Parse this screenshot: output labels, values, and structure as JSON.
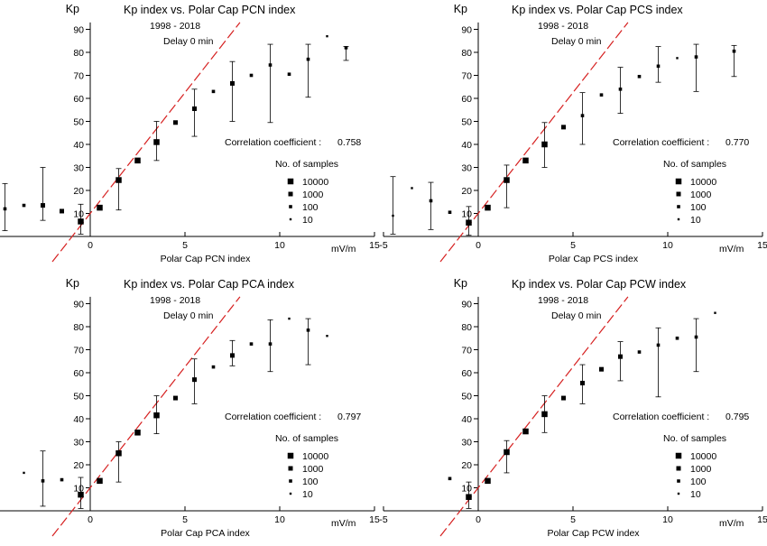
{
  "chart_data": [
    {
      "type": "scatter",
      "title": "Kp index vs. Polar Cap PCN index",
      "subtitle": "1998 - 2018",
      "delay": "Delay 0 min",
      "xlabel": "Polar Cap PCN index",
      "xunit": "mV/m",
      "ylabel": "Kp",
      "xlim": [
        -5,
        15
      ],
      "ylim": [
        0,
        9.3
      ],
      "xticks": [
        "-5",
        "0",
        "5",
        "10",
        "15"
      ],
      "yticks": [
        "10",
        "20",
        "30",
        "40",
        "50",
        "60",
        "70",
        "80",
        "90"
      ],
      "correlation_label": "Correlation coefficient :",
      "correlation": "0.758",
      "legend": {
        "title": "No. of samples",
        "entries": [
          "10000",
          "1000",
          "100",
          "10"
        ]
      },
      "points": [
        {
          "x": -4.5,
          "y": 1.2,
          "lo": 0.25,
          "hi": 2.3,
          "n": 100
        },
        {
          "x": -3.5,
          "y": 1.35,
          "n": 100
        },
        {
          "x": -2.5,
          "y": 1.35,
          "lo": 0.7,
          "hi": 3.0,
          "n": 1000
        },
        {
          "x": -1.5,
          "y": 1.1,
          "n": 1000
        },
        {
          "x": -0.5,
          "y": 0.65,
          "lo": 0.1,
          "hi": 1.4,
          "n": 10000
        },
        {
          "x": 0.5,
          "y": 1.25,
          "n": 10000
        },
        {
          "x": 1.5,
          "y": 2.45,
          "lo": 1.15,
          "hi": 2.95,
          "n": 10000
        },
        {
          "x": 2.5,
          "y": 3.3,
          "n": 10000
        },
        {
          "x": 3.5,
          "y": 4.1,
          "lo": 3.3,
          "hi": 5.0,
          "n": 10000
        },
        {
          "x": 4.5,
          "y": 4.95,
          "n": 1000
        },
        {
          "x": 5.5,
          "y": 5.55,
          "lo": 4.35,
          "hi": 6.4,
          "n": 1000
        },
        {
          "x": 6.5,
          "y": 6.3,
          "n": 100
        },
        {
          "x": 7.5,
          "y": 6.65,
          "lo": 5.0,
          "hi": 7.6,
          "n": 1000
        },
        {
          "x": 8.5,
          "y": 7.0,
          "n": 100
        },
        {
          "x": 9.5,
          "y": 7.45,
          "lo": 4.95,
          "hi": 8.35,
          "n": 100
        },
        {
          "x": 10.5,
          "y": 7.05,
          "n": 100
        },
        {
          "x": 11.5,
          "y": 7.7,
          "lo": 6.05,
          "hi": 8.35,
          "n": 100
        },
        {
          "x": 12.5,
          "y": 8.7,
          "n": 10
        },
        {
          "x": 13.5,
          "y": 8.2,
          "lo": 7.65,
          "hi": 8.25,
          "n": 100
        }
      ]
    },
    {
      "type": "scatter",
      "title": "Kp index vs. Polar Cap PCS index",
      "subtitle": "1998 - 2018",
      "delay": "Delay 0 min",
      "xlabel": "Polar Cap PCS index",
      "xunit": "mV/m",
      "ylabel": "Kp",
      "xlim": [
        -5,
        15
      ],
      "ylim": [
        0,
        9.3
      ],
      "xticks": [
        "-5",
        "0",
        "5",
        "10",
        "15"
      ],
      "yticks": [
        "10",
        "20",
        "30",
        "40",
        "50",
        "60",
        "70",
        "80",
        "90"
      ],
      "correlation_label": "Correlation coefficient :",
      "correlation": "0.770",
      "legend": {
        "title": "No. of samples",
        "entries": [
          "10000",
          "1000",
          "100",
          "10"
        ]
      },
      "points": [
        {
          "x": -4.5,
          "y": 0.9,
          "lo": 0.1,
          "hi": 2.6,
          "n": 10
        },
        {
          "x": -3.5,
          "y": 2.1,
          "n": 10
        },
        {
          "x": -2.5,
          "y": 1.55,
          "lo": 0.3,
          "hi": 2.35,
          "n": 100
        },
        {
          "x": -1.5,
          "y": 1.05,
          "n": 100
        },
        {
          "x": -0.5,
          "y": 0.6,
          "lo": 0.05,
          "hi": 1.3,
          "n": 10000
        },
        {
          "x": 0.5,
          "y": 1.25,
          "n": 10000
        },
        {
          "x": 1.5,
          "y": 2.45,
          "lo": 1.25,
          "hi": 3.1,
          "n": 10000
        },
        {
          "x": 2.5,
          "y": 3.3,
          "n": 10000
        },
        {
          "x": 3.5,
          "y": 4.0,
          "lo": 3.0,
          "hi": 4.95,
          "n": 10000
        },
        {
          "x": 4.5,
          "y": 4.75,
          "n": 1000
        },
        {
          "x": 5.5,
          "y": 5.25,
          "lo": 4.0,
          "hi": 6.25,
          "n": 100
        },
        {
          "x": 6.5,
          "y": 6.15,
          "n": 100
        },
        {
          "x": 7.5,
          "y": 6.4,
          "lo": 5.35,
          "hi": 7.35,
          "n": 100
        },
        {
          "x": 8.5,
          "y": 6.95,
          "n": 100
        },
        {
          "x": 9.5,
          "y": 7.4,
          "lo": 6.7,
          "hi": 8.25,
          "n": 100
        },
        {
          "x": 10.5,
          "y": 7.75,
          "n": 10
        },
        {
          "x": 11.5,
          "y": 7.8,
          "lo": 6.3,
          "hi": 8.35,
          "n": 100
        },
        {
          "x": 13.5,
          "y": 8.05,
          "lo": 6.95,
          "hi": 8.3,
          "n": 100
        }
      ]
    },
    {
      "type": "scatter",
      "title": "Kp index vs. Polar Cap PCA index",
      "subtitle": "1998 - 2018",
      "delay": "Delay 0 min",
      "xlabel": "Polar Cap PCA index",
      "xunit": "mV/m",
      "ylabel": "Kp",
      "xlim": [
        -5,
        15
      ],
      "ylim": [
        0,
        9.3
      ],
      "xticks": [
        "-5",
        "0",
        "5",
        "10",
        "15"
      ],
      "yticks": [
        "10",
        "20",
        "30",
        "40",
        "50",
        "60",
        "70",
        "80",
        "90"
      ],
      "correlation_label": "Correlation coefficient :",
      "correlation": "0.797",
      "legend": {
        "title": "No. of samples",
        "entries": [
          "10000",
          "1000",
          "100",
          "10"
        ]
      },
      "points": [
        {
          "x": -3.5,
          "y": 1.65,
          "n": 10
        },
        {
          "x": -2.5,
          "y": 1.3,
          "lo": 0.2,
          "hi": 2.6,
          "n": 100
        },
        {
          "x": -1.5,
          "y": 1.35,
          "n": 100
        },
        {
          "x": -0.5,
          "y": 0.7,
          "lo": 0.1,
          "hi": 1.45,
          "n": 10000
        },
        {
          "x": 0.5,
          "y": 1.3,
          "n": 10000
        },
        {
          "x": 1.5,
          "y": 2.5,
          "lo": 1.25,
          "hi": 3.0,
          "n": 10000
        },
        {
          "x": 2.5,
          "y": 3.4,
          "n": 10000
        },
        {
          "x": 3.5,
          "y": 4.15,
          "lo": 3.35,
          "hi": 5.0,
          "n": 10000
        },
        {
          "x": 4.5,
          "y": 4.9,
          "n": 1000
        },
        {
          "x": 5.5,
          "y": 5.7,
          "lo": 4.65,
          "hi": 6.6,
          "n": 1000
        },
        {
          "x": 6.5,
          "y": 6.25,
          "n": 100
        },
        {
          "x": 7.5,
          "y": 6.75,
          "lo": 6.3,
          "hi": 7.4,
          "n": 1000
        },
        {
          "x": 8.5,
          "y": 7.25,
          "n": 100
        },
        {
          "x": 9.5,
          "y": 7.25,
          "lo": 6.05,
          "hi": 8.3,
          "n": 100
        },
        {
          "x": 10.5,
          "y": 8.35,
          "n": 10
        },
        {
          "x": 11.5,
          "y": 7.85,
          "lo": 6.35,
          "hi": 8.35,
          "n": 100
        },
        {
          "x": 12.5,
          "y": 7.6,
          "n": 10
        }
      ]
    },
    {
      "type": "scatter",
      "title": "Kp index vs. Polar Cap PCW index",
      "subtitle": "1998 - 2018",
      "delay": "Delay 0 min",
      "xlabel": "Polar Cap PCW index",
      "xunit": "mV/m",
      "ylabel": "Kp",
      "xlim": [
        -5,
        15
      ],
      "ylim": [
        0,
        9.3
      ],
      "xticks": [
        "-5",
        "0",
        "5",
        "10",
        "15"
      ],
      "yticks": [
        "10",
        "20",
        "30",
        "40",
        "50",
        "60",
        "70",
        "80",
        "90"
      ],
      "correlation_label": "Correlation coefficient :",
      "correlation": "0.795",
      "legend": {
        "title": "No. of samples",
        "entries": [
          "10000",
          "1000",
          "100",
          "10"
        ]
      },
      "points": [
        {
          "x": -1.5,
          "y": 1.4,
          "n": 100
        },
        {
          "x": -0.5,
          "y": 0.6,
          "lo": 0.1,
          "hi": 1.25,
          "n": 10000
        },
        {
          "x": 0.5,
          "y": 1.3,
          "n": 10000
        },
        {
          "x": 1.5,
          "y": 2.55,
          "lo": 1.65,
          "hi": 3.05,
          "n": 10000
        },
        {
          "x": 2.5,
          "y": 3.45,
          "n": 10000
        },
        {
          "x": 3.5,
          "y": 4.2,
          "lo": 3.4,
          "hi": 5.0,
          "n": 10000
        },
        {
          "x": 4.5,
          "y": 4.9,
          "n": 1000
        },
        {
          "x": 5.5,
          "y": 5.55,
          "lo": 4.65,
          "hi": 6.35,
          "n": 1000
        },
        {
          "x": 6.5,
          "y": 6.15,
          "n": 1000
        },
        {
          "x": 7.5,
          "y": 6.7,
          "lo": 5.65,
          "hi": 7.35,
          "n": 1000
        },
        {
          "x": 8.5,
          "y": 6.9,
          "n": 100
        },
        {
          "x": 9.5,
          "y": 7.2,
          "lo": 4.95,
          "hi": 7.95,
          "n": 100
        },
        {
          "x": 10.5,
          "y": 7.5,
          "n": 100
        },
        {
          "x": 11.5,
          "y": 7.55,
          "lo": 6.05,
          "hi": 8.35,
          "n": 100
        },
        {
          "x": 12.5,
          "y": 8.6,
          "n": 10
        }
      ]
    }
  ],
  "colors": {
    "fit_line": "#d62020",
    "marker": "#000000",
    "axis": "#000000"
  }
}
